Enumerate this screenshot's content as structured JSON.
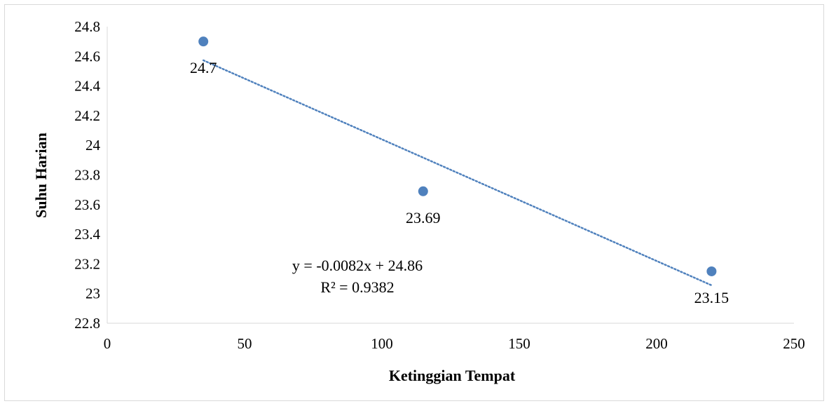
{
  "chart_data": {
    "type": "scatter",
    "xlabel": "Ketinggian Tempat",
    "ylabel": "Suhu Harian",
    "xlim": [
      0,
      250
    ],
    "ylim": [
      22.8,
      24.8
    ],
    "x_ticks": [
      0,
      50,
      100,
      150,
      200,
      250
    ],
    "y_ticks": [
      22.8,
      23,
      23.2,
      23.4,
      23.6,
      23.8,
      24,
      24.2,
      24.4,
      24.6,
      24.8
    ],
    "x_tick_labels": [
      "0",
      "50",
      "100",
      "150",
      "200",
      "250"
    ],
    "y_tick_labels": [
      "22.8",
      "23",
      "23.2",
      "23.4",
      "23.6",
      "23.8",
      "24",
      "24.2",
      "24.4",
      "24.6",
      "24.8"
    ],
    "grid": false,
    "points": [
      {
        "x": 35,
        "y": 24.7,
        "label": "24.7"
      },
      {
        "x": 115,
        "y": 23.69,
        "label": "23.69"
      },
      {
        "x": 220,
        "y": 23.15,
        "label": "23.15"
      }
    ],
    "trendline": {
      "type": "linear",
      "slope": -0.0082,
      "intercept": 24.86,
      "x_range": [
        35,
        220
      ],
      "equation": "y = -0.0082x + 24.86",
      "r_squared": "R² = 0.9382"
    },
    "colors": {
      "marker": "#4f81bd",
      "trendline": "#4f81bd",
      "axis": "#d9d9d9"
    }
  }
}
